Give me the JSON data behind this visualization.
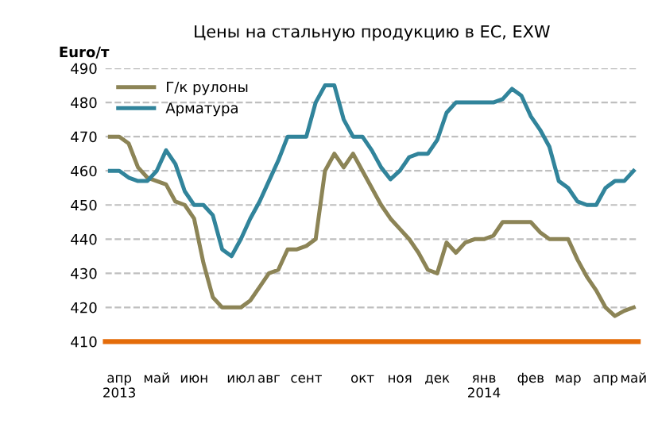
{
  "chart_data": {
    "type": "line",
    "title": "Цены на стальную продукцию в ЕС, EXW",
    "ylabel": "Euro/т",
    "categories": [
      null,
      "апр\n2013",
      null,
      null,
      null,
      "май",
      null,
      null,
      null,
      "июн",
      null,
      null,
      null,
      null,
      "июл",
      null,
      null,
      "авг",
      null,
      null,
      null,
      "сент",
      null,
      null,
      null,
      null,
      null,
      "окт",
      null,
      null,
      null,
      "ноя",
      null,
      null,
      null,
      "дек",
      null,
      null,
      null,
      null,
      "янв\n2014",
      null,
      null,
      null,
      null,
      "фев",
      null,
      null,
      null,
      "мар",
      null,
      null,
      null,
      "апр",
      null,
      null,
      "май"
    ],
    "series": [
      {
        "name": "Г/к рулоны",
        "color": "#8c8456",
        "values": [
          470,
          470,
          468,
          461,
          458,
          457,
          456,
          451,
          450,
          446,
          433,
          423,
          420,
          420,
          420,
          422,
          426,
          430,
          431,
          437,
          437,
          438,
          440,
          460,
          465,
          461,
          465,
          460,
          455,
          450,
          446,
          443,
          440,
          436,
          431,
          430,
          439,
          436,
          439,
          440,
          440,
          441,
          445,
          445,
          445,
          445,
          442,
          440,
          440,
          440,
          434,
          429,
          425,
          420,
          417.5,
          419,
          420
        ]
      },
      {
        "name": "Арматура",
        "color": "#31849b",
        "values": [
          460,
          460,
          458,
          457,
          457,
          460,
          466,
          462,
          454,
          450,
          450,
          447,
          437,
          435,
          440,
          446,
          451,
          457,
          463,
          470,
          470,
          470,
          480,
          485,
          485,
          475,
          470,
          470,
          466,
          461,
          457.5,
          460,
          464,
          465,
          465,
          469,
          477,
          480,
          480,
          480,
          480,
          480,
          481,
          484,
          482,
          476,
          472,
          467,
          457,
          455,
          451,
          450,
          450,
          455,
          457,
          457,
          460
        ]
      }
    ],
    "ylim": [
      410,
      490
    ],
    "yticks": [
      410,
      420,
      430,
      440,
      450,
      460,
      470,
      480,
      490
    ],
    "grid": "y",
    "legend": "top left",
    "line_style": "solid"
  }
}
